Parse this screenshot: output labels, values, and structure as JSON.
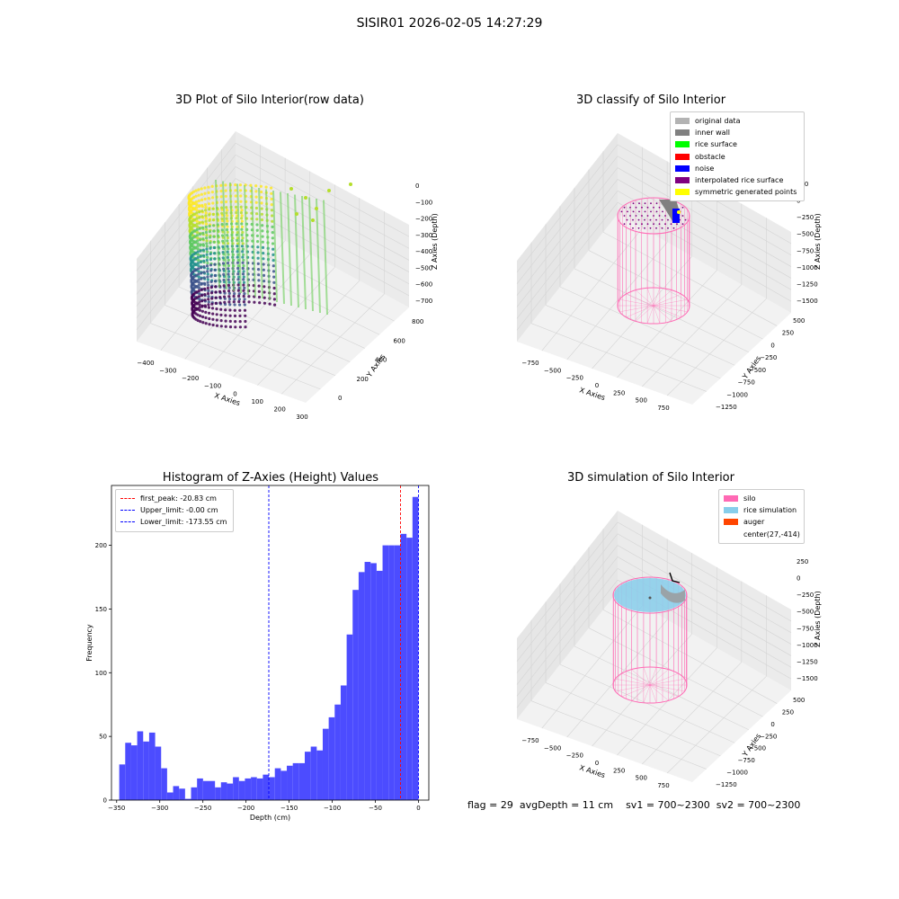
{
  "suptitle": "SISIR01 2026-02-05 14:27:29",
  "status": {
    "flag": "flag = 29",
    "avg_depth": "avgDepth = 11 cm",
    "sv1": "sv1 = 700~2300",
    "sv2": "sv2 = 700~2300"
  },
  "colors": {
    "original_data": "#b3b3b3",
    "inner_wall": "#808080",
    "rice_surface": "#00ff00",
    "obstacle": "#ff0000",
    "noise": "#0000ff",
    "interpolated_rice_surface": "#800080",
    "symmetric_generated_points": "#ffff00",
    "silo": "#ff69b4",
    "rice_simulation": "#87ceeb",
    "auger": "#ff4500",
    "histogram_bar": "#4c4cff"
  },
  "panel_raw": {
    "title": "3D Plot of Silo Interior(row data)",
    "x_label": "X Axies",
    "y_label": "Y Axies",
    "z_label": "Z Axies (Depth)",
    "x_ticks": [
      "−400",
      "−300",
      "−200",
      "−100",
      "0",
      "100",
      "200",
      "300"
    ],
    "y_ticks": [
      "0",
      "200",
      "400",
      "600",
      "800"
    ],
    "z_ticks": [
      "0",
      "−100",
      "−200",
      "−300",
      "−400",
      "−500",
      "−600",
      "−700"
    ]
  },
  "panel_classify": {
    "title": "3D classify of Silo Interior",
    "x_label": "X Axies",
    "y_label": "Y Axies",
    "z_label": "Z Axies (Depth)",
    "x_ticks": [
      "−750",
      "−500",
      "−250",
      "0",
      "250",
      "500",
      "750"
    ],
    "y_ticks": [
      "−1250",
      "−1000",
      "−750",
      "−500",
      "−250",
      "0",
      "250",
      "500"
    ],
    "z_ticks": [
      "250",
      "0",
      "−250",
      "−500",
      "−750",
      "−1000",
      "−1250",
      "−1500"
    ],
    "legend": [
      {
        "label": "original data",
        "color_key": "original_data"
      },
      {
        "label": "inner wall",
        "color_key": "inner_wall"
      },
      {
        "label": "rice surface",
        "color_key": "rice_surface"
      },
      {
        "label": "obstacle",
        "color_key": "obstacle"
      },
      {
        "label": "noise",
        "color_key": "noise"
      },
      {
        "label": "interpolated rice surface",
        "color_key": "interpolated_rice_surface"
      },
      {
        "label": "symmetric generated points",
        "color_key": "symmetric_generated_points"
      }
    ]
  },
  "panel_sim": {
    "title": "3D simulation of Silo Interior",
    "x_label": "X Axies",
    "y_label": "Y Axies",
    "z_label": "Z Axies (Depth)",
    "x_ticks": [
      "−750",
      "−500",
      "−250",
      "0",
      "250",
      "500",
      "750"
    ],
    "y_ticks": [
      "−1250",
      "−1000",
      "−750",
      "−500",
      "−250",
      "0",
      "250",
      "500"
    ],
    "z_ticks": [
      "250",
      "0",
      "−250",
      "−500",
      "−750",
      "−1000",
      "−1250",
      "−1500"
    ],
    "legend": [
      {
        "label": "silo",
        "color_key": "silo"
      },
      {
        "label": "rice simulation",
        "color_key": "rice_simulation"
      },
      {
        "label": "auger",
        "color_key": "auger"
      },
      {
        "label": "center(27,-414)",
        "color_key": ""
      }
    ]
  },
  "chart_data": {
    "type": "bar",
    "title": "Histogram of Z-Axies (Height) Values",
    "xlabel": "Depth (cm)",
    "ylabel": "Frequency",
    "xlim": [
      -356,
      12
    ],
    "ylim": [
      0,
      247
    ],
    "x_ticks": [
      -350,
      -300,
      -250,
      -200,
      -150,
      -100,
      -50,
      0
    ],
    "x_tick_labels": [
      "−350",
      "−300",
      "−250",
      "−200",
      "−150",
      "−100",
      "−50",
      "0"
    ],
    "y_ticks": [
      0,
      50,
      100,
      150,
      200
    ],
    "bin_width": 6.94,
    "bin_start": -347.0,
    "values": [
      28,
      45,
      43,
      54,
      46,
      53,
      42,
      25,
      6,
      11,
      9,
      1,
      10,
      17,
      15,
      15,
      10,
      14,
      13,
      18,
      15,
      17,
      18,
      17,
      20,
      18,
      25,
      23,
      27,
      29,
      29,
      38,
      42,
      39,
      56,
      65,
      75,
      90,
      130,
      165,
      179,
      187,
      186,
      180,
      200,
      200,
      200,
      209,
      206,
      238
    ],
    "lines": [
      {
        "label": "first_peak: -20.83 cm",
        "x": -20.83,
        "color": "#ff0000"
      },
      {
        "label": "Upper_limit: -0.00 cm",
        "x": -0.0,
        "color": "#0000ff"
      },
      {
        "label": "Lower_limit: -173.55 cm",
        "x": -173.55,
        "color": "#0000ff"
      }
    ]
  }
}
